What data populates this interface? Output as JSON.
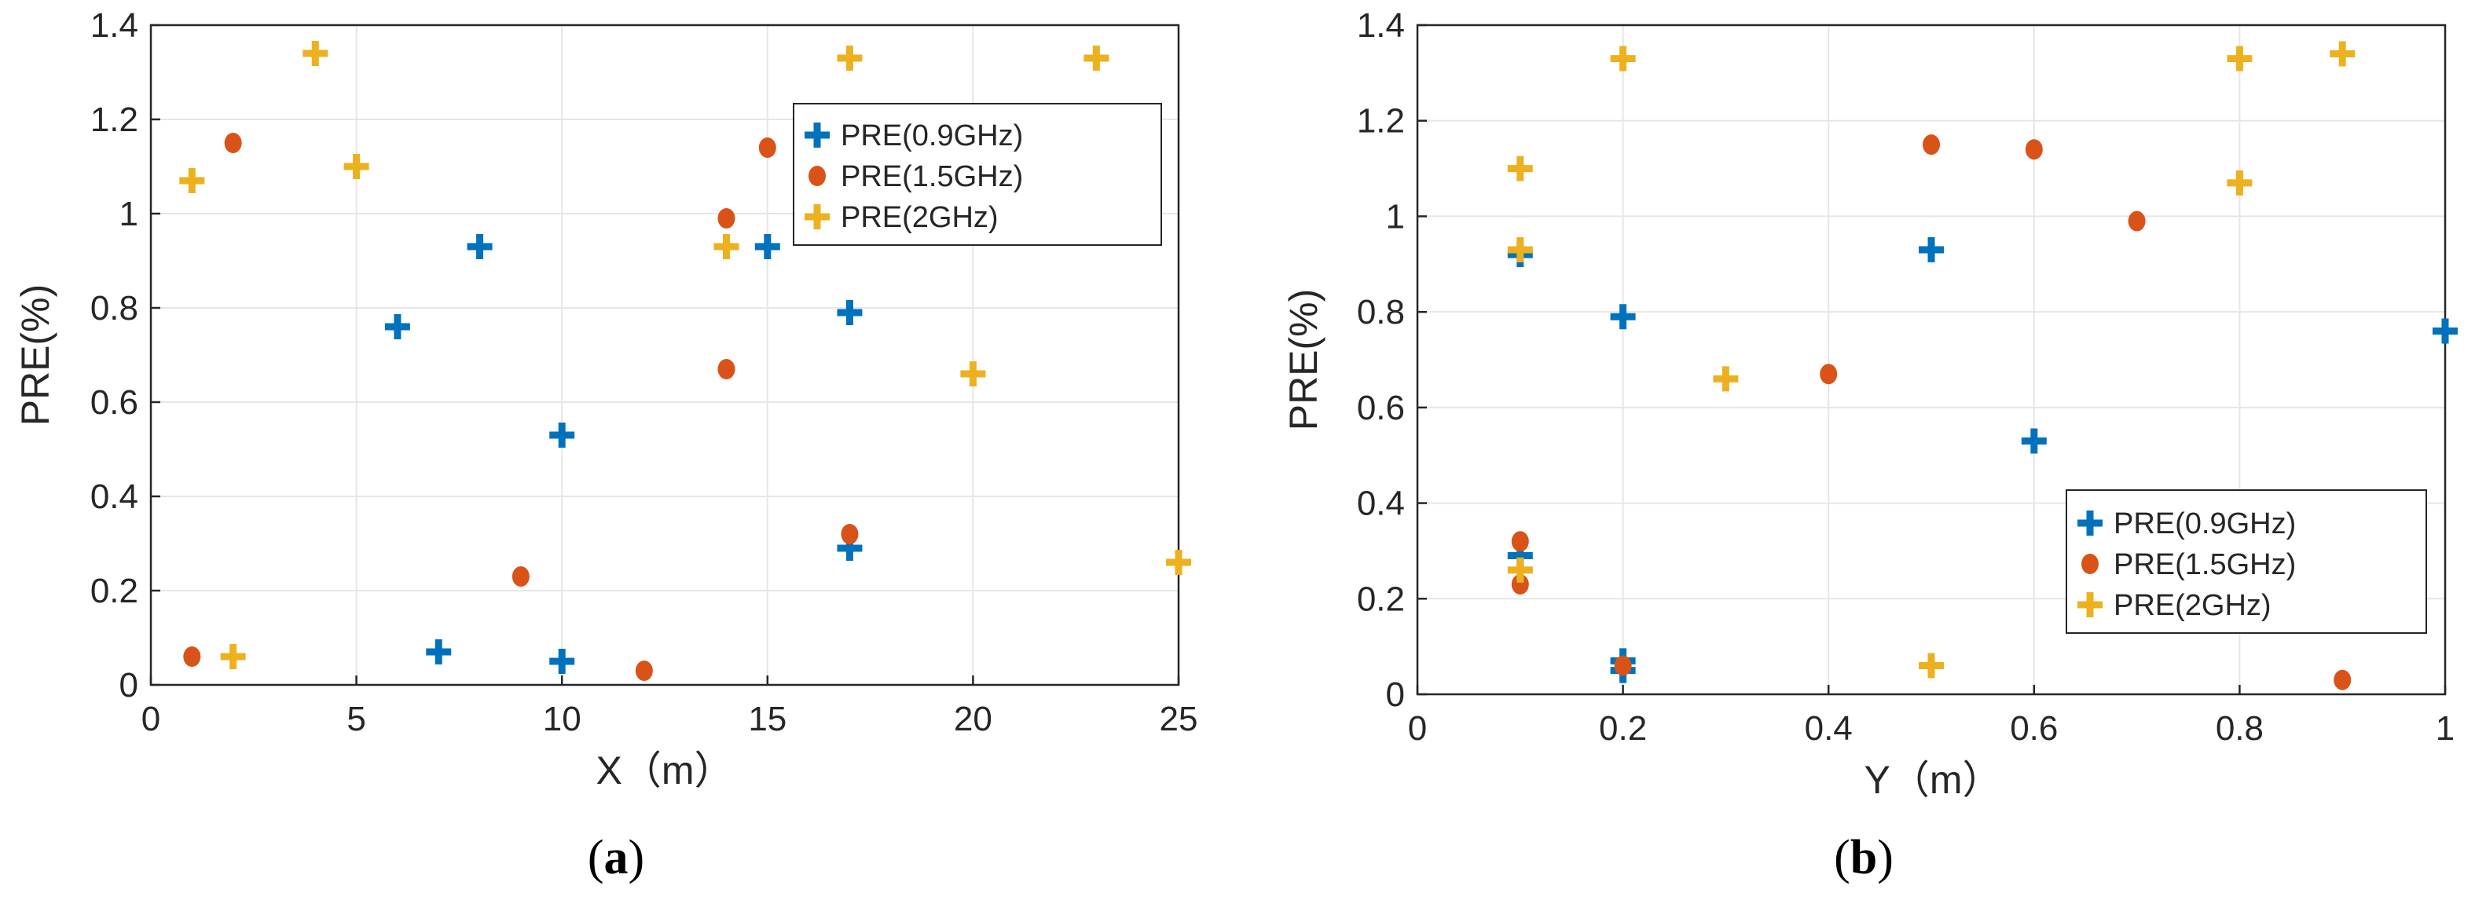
{
  "chart_data": [
    {
      "id": "a",
      "type": "scatter",
      "caption": "a",
      "xlabel": "X（m）",
      "ylabel": "PRE(%)",
      "xlim": [
        0,
        25
      ],
      "ylim": [
        0,
        1.4
      ],
      "xticks": [
        "0",
        "5",
        "10",
        "15",
        "20",
        "25"
      ],
      "xtick_values": [
        0,
        5,
        10,
        15,
        20,
        25
      ],
      "yticks": [
        "0",
        "0.2",
        "0.4",
        "0.6",
        "0.8",
        "1",
        "1.2",
        "1.4"
      ],
      "ytick_values": [
        0,
        0.2,
        0.4,
        0.6,
        0.8,
        1.0,
        1.2,
        1.4
      ],
      "grid": true,
      "legend_position": "top-right",
      "series": [
        {
          "name": "PRE(0.9GHz)",
          "color": "#0072BD",
          "marker": "plus",
          "x": [
            6,
            7,
            8,
            10,
            10,
            15,
            17,
            17
          ],
          "y": [
            0.76,
            0.07,
            0.93,
            0.53,
            0.05,
            0.93,
            0.79,
            0.29
          ]
        },
        {
          "name": "PRE(1.5GHz)",
          "color": "#D95319",
          "marker": "dot",
          "x": [
            1,
            2,
            9,
            12,
            14,
            14,
            15,
            17
          ],
          "y": [
            0.06,
            1.15,
            0.23,
            0.03,
            0.99,
            0.67,
            1.14,
            0.32
          ]
        },
        {
          "name": "PRE(2GHz)",
          "color": "#EDB120",
          "marker": "plus",
          "x": [
            1,
            2,
            4,
            5,
            14,
            17,
            20,
            23,
            25
          ],
          "y": [
            1.07,
            0.06,
            1.34,
            1.1,
            0.93,
            1.33,
            0.66,
            1.33,
            0.26
          ]
        }
      ]
    },
    {
      "id": "b",
      "type": "scatter",
      "caption": "b",
      "xlabel": "Y（m）",
      "ylabel": "PRE(%)",
      "xlim": [
        0,
        1
      ],
      "ylim": [
        0,
        1.4
      ],
      "xticks": [
        "0",
        "0.2",
        "0.4",
        "0.6",
        "0.8",
        "1"
      ],
      "xtick_values": [
        0,
        0.2,
        0.4,
        0.6,
        0.8,
        1.0
      ],
      "yticks": [
        "0",
        "0.2",
        "0.4",
        "0.6",
        "0.8",
        "1",
        "1.2",
        "1.4"
      ],
      "ytick_values": [
        0,
        0.2,
        0.4,
        0.6,
        0.8,
        1.0,
        1.2,
        1.4
      ],
      "grid": true,
      "legend_position": "bottom-right",
      "series": [
        {
          "name": "PRE(0.9GHz)",
          "color": "#0072BD",
          "marker": "plus",
          "x": [
            0.1,
            0.1,
            0.2,
            0.2,
            0.2,
            0.5,
            0.6,
            1.0
          ],
          "y": [
            0.92,
            0.29,
            0.79,
            0.07,
            0.05,
            0.93,
            0.53,
            0.76
          ]
        },
        {
          "name": "PRE(1.5GHz)",
          "color": "#D95319",
          "marker": "dot",
          "x": [
            0.1,
            0.1,
            0.2,
            0.4,
            0.5,
            0.6,
            0.7,
            0.9
          ],
          "y": [
            0.32,
            0.23,
            0.06,
            0.67,
            1.15,
            1.14,
            0.99,
            0.03
          ]
        },
        {
          "name": "PRE(2GHz)",
          "color": "#EDB120",
          "marker": "plus",
          "x": [
            0.1,
            0.1,
            0.1,
            0.2,
            0.3,
            0.5,
            0.8,
            0.8,
            0.9
          ],
          "y": [
            1.1,
            0.93,
            0.26,
            1.33,
            0.66,
            0.06,
            1.33,
            1.07,
            1.34
          ]
        }
      ]
    }
  ]
}
